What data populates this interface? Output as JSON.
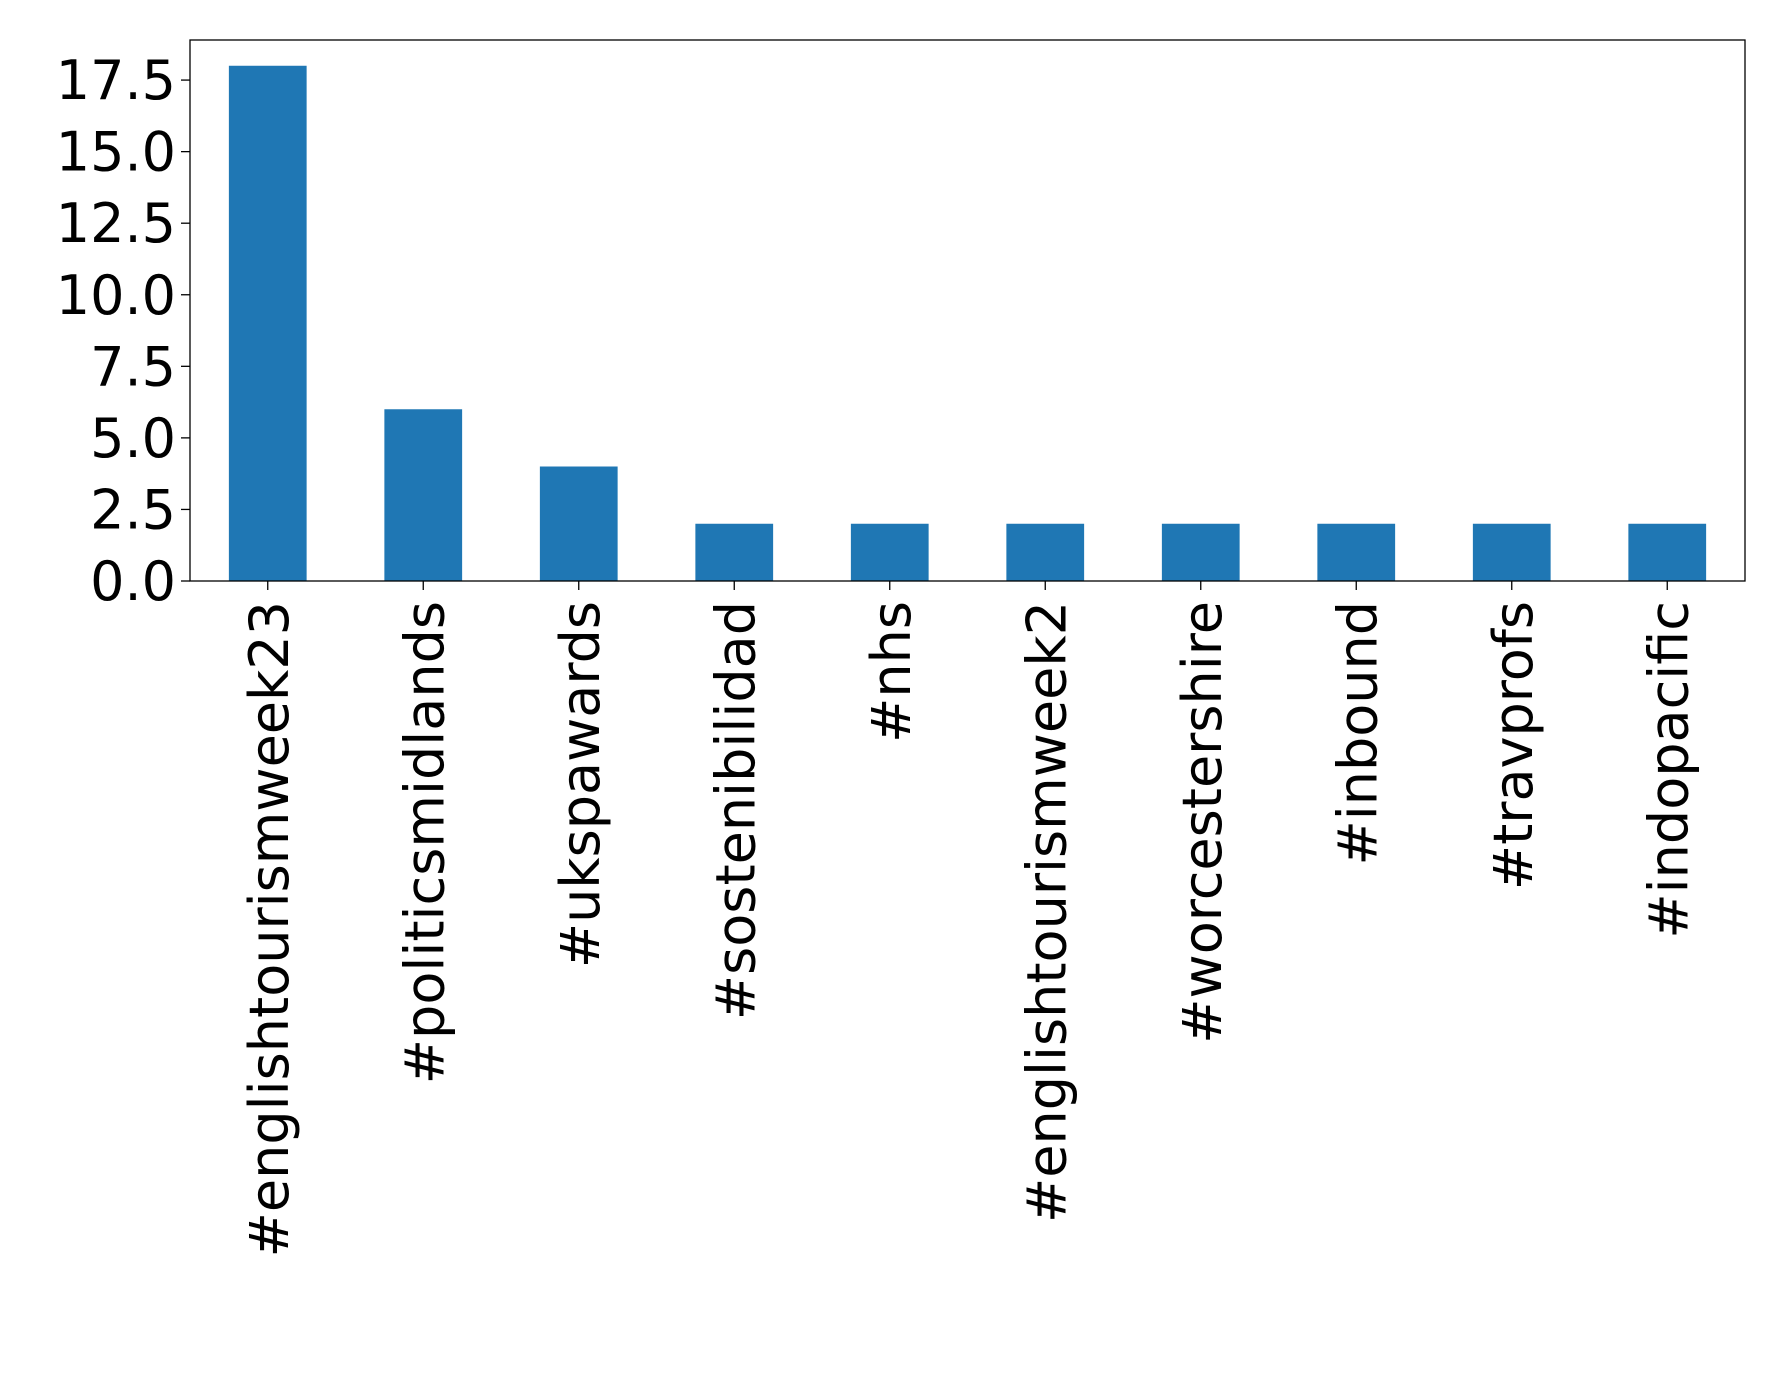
{
  "chart_data": {
    "type": "bar",
    "categories": [
      "#englishtourismweek23",
      "#politicsmidlands",
      "#ukspawards",
      "#sostenibilidad",
      "#nhs",
      "#englishtourismweek2",
      "#worcestershire",
      "#inbound",
      "#travprofs",
      "#indopacific"
    ],
    "values": [
      18,
      6,
      4,
      2,
      2,
      2,
      2,
      2,
      2,
      2
    ],
    "title": "",
    "xlabel": "",
    "ylabel": "",
    "ylim": [
      0,
      18.9
    ],
    "yticks": [
      "0.0",
      "2.5",
      "5.0",
      "7.5",
      "10.0",
      "12.5",
      "15.0",
      "17.5"
    ],
    "grid": false,
    "legend": "none",
    "bar_color": "#1f77b4"
  }
}
